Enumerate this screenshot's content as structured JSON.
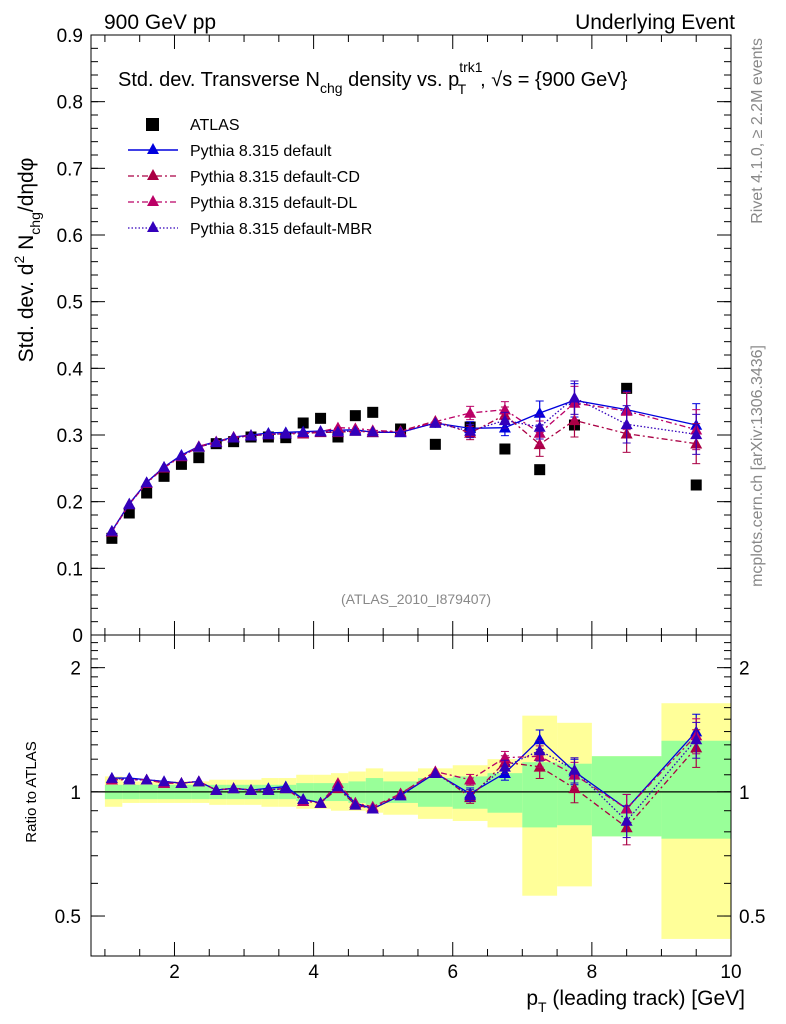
{
  "header": {
    "left": "900 GeV pp",
    "right": "Underlying Event"
  },
  "side_text": {
    "rivet": "Rivet 4.1.0, ≥ 2.2M events",
    "mcplots": "mcplots.cern.ch [arXiv:1306.3436]"
  },
  "analysis_id": "(ATLAS_2010_I879407)",
  "colors": {
    "atlas": "#000000",
    "default": "#0000dd",
    "cd": "#aa0044",
    "dl": "#bb0066",
    "mbr": "#3300bb",
    "band_yellow": "#ffff99",
    "band_green": "#99ff99"
  },
  "chart_data": [
    {
      "type": "scatter",
      "panel": "main",
      "title_parts": {
        "a": "Std. dev. Transverse N",
        "a_sub": "chg",
        "b": " density vs. p",
        "b_sup": "trk1",
        "b_sub": "T",
        "c": ", √s = {900 GeV}"
      },
      "ylabel": "Std. dev. d² N_chg/dηdφ",
      "ylabel_parts": {
        "a": "Std. dev. d",
        "sup": "2",
        "b": " N",
        "sub": "chg",
        "c": "/dηdφ"
      },
      "xlabel": "p_T (leading track) [GeV]",
      "xlabel_parts": {
        "a": "p",
        "sub": "T",
        "b": " (leading track) [GeV]"
      },
      "xlim": [
        0.8,
        10
      ],
      "ylim": [
        0,
        0.9
      ],
      "x_ticks": [
        "2",
        "4",
        "6",
        "8",
        "10"
      ],
      "y_ticks": [
        "0",
        "0.1",
        "0.2",
        "0.3",
        "0.4",
        "0.5",
        "0.6",
        "0.7",
        "0.8",
        "0.9"
      ],
      "x": [
        1.1,
        1.35,
        1.6,
        1.85,
        2.1,
        2.35,
        2.6,
        2.85,
        3.1,
        3.35,
        3.6,
        3.85,
        4.1,
        4.35,
        4.6,
        4.85,
        5.25,
        5.75,
        6.25,
        6.75,
        7.25,
        7.75,
        8.5,
        9.5
      ],
      "series": [
        {
          "name": "ATLAS",
          "key": "atlas",
          "marker": "square",
          "line": "none",
          "values": [
            0.145,
            0.183,
            0.213,
            0.238,
            0.256,
            0.266,
            0.287,
            0.29,
            0.297,
            0.297,
            0.296,
            0.318,
            0.325,
            0.297,
            0.329,
            0.334,
            0.309,
            0.286,
            0.312,
            0.279,
            0.248,
            0.315,
            0.37,
            0.225
          ]
        },
        {
          "name": "Pythia 8.315 default",
          "key": "default",
          "marker": "triangle",
          "line": "solid",
          "values": [
            0.156,
            0.197,
            0.229,
            0.252,
            0.27,
            0.283,
            0.29,
            0.297,
            0.3,
            0.303,
            0.304,
            0.305,
            0.306,
            0.307,
            0.308,
            0.304,
            0.304,
            0.318,
            0.31,
            0.311,
            0.333,
            0.352,
            0.338,
            0.315
          ],
          "errors": [
            0.002,
            0.002,
            0.002,
            0.002,
            0.002,
            0.002,
            0.002,
            0.002,
            0.002,
            0.002,
            0.002,
            0.003,
            0.003,
            0.003,
            0.004,
            0.004,
            0.004,
            0.007,
            0.01,
            0.012,
            0.018,
            0.025,
            0.028,
            0.032
          ]
        },
        {
          "name": "Pythia 8.315 default-CD",
          "key": "cd",
          "marker": "triangle",
          "line": "dashdot",
          "values": [
            0.155,
            0.196,
            0.228,
            0.251,
            0.268,
            0.282,
            0.289,
            0.296,
            0.299,
            0.301,
            0.302,
            0.302,
            0.304,
            0.304,
            0.306,
            0.304,
            0.306,
            0.321,
            0.303,
            0.33,
            0.286,
            0.322,
            0.302,
            0.287
          ],
          "errors": [
            0.002,
            0.002,
            0.002,
            0.002,
            0.002,
            0.002,
            0.002,
            0.002,
            0.002,
            0.002,
            0.002,
            0.003,
            0.003,
            0.003,
            0.004,
            0.004,
            0.004,
            0.007,
            0.01,
            0.012,
            0.018,
            0.025,
            0.028,
            0.03
          ]
        },
        {
          "name": "Pythia 8.315 default-DL",
          "key": "dl",
          "marker": "triangle",
          "line": "dashdot",
          "values": [
            0.155,
            0.196,
            0.228,
            0.251,
            0.268,
            0.283,
            0.29,
            0.297,
            0.299,
            0.301,
            0.302,
            0.303,
            0.305,
            0.311,
            0.31,
            0.307,
            0.305,
            0.32,
            0.333,
            0.338,
            0.303,
            0.348,
            0.336,
            0.308
          ],
          "errors": [
            0.002,
            0.002,
            0.002,
            0.002,
            0.002,
            0.002,
            0.002,
            0.002,
            0.002,
            0.002,
            0.002,
            0.003,
            0.003,
            0.003,
            0.004,
            0.004,
            0.004,
            0.007,
            0.01,
            0.012,
            0.018,
            0.025,
            0.028,
            0.03
          ]
        },
        {
          "name": "Pythia 8.315 default-MBR",
          "key": "mbr",
          "marker": "triangle",
          "line": "dotted",
          "values": [
            0.156,
            0.196,
            0.229,
            0.252,
            0.269,
            0.282,
            0.289,
            0.296,
            0.299,
            0.301,
            0.302,
            0.304,
            0.305,
            0.305,
            0.306,
            0.305,
            0.304,
            0.318,
            0.306,
            0.322,
            0.312,
            0.356,
            0.316,
            0.301
          ],
          "errors": [
            0.002,
            0.002,
            0.002,
            0.002,
            0.002,
            0.002,
            0.002,
            0.002,
            0.002,
            0.002,
            0.002,
            0.003,
            0.003,
            0.003,
            0.004,
            0.004,
            0.004,
            0.007,
            0.01,
            0.012,
            0.018,
            0.025,
            0.028,
            0.03
          ]
        }
      ]
    },
    {
      "type": "line",
      "panel": "ratio",
      "ylabel": "Ratio to ATLAS",
      "ylim": [
        0.4,
        2.4
      ],
      "y_ticks": [
        "0.5",
        "1",
        "2"
      ],
      "reference_line": 1,
      "bin_edges": [
        1.0,
        1.25,
        1.5,
        1.75,
        2.0,
        2.25,
        2.5,
        2.75,
        3.0,
        3.25,
        3.5,
        3.75,
        4.0,
        4.25,
        4.5,
        4.75,
        5.0,
        5.5,
        6.0,
        6.5,
        7.0,
        7.5,
        8.0,
        9.0,
        10.0
      ],
      "band_green": [
        [
          0.96,
          1.04
        ],
        [
          0.96,
          1.04
        ],
        [
          0.96,
          1.04
        ],
        [
          0.96,
          1.04
        ],
        [
          0.96,
          1.04
        ],
        [
          0.96,
          1.04
        ],
        [
          0.96,
          1.04
        ],
        [
          0.96,
          1.04
        ],
        [
          0.96,
          1.04
        ],
        [
          0.96,
          1.04
        ],
        [
          0.96,
          1.04
        ],
        [
          0.95,
          1.05
        ],
        [
          0.95,
          1.05
        ],
        [
          0.95,
          1.05
        ],
        [
          0.94,
          1.06
        ],
        [
          0.93,
          1.08
        ],
        [
          0.94,
          1.06
        ],
        [
          0.92,
          1.08
        ],
        [
          0.91,
          1.09
        ],
        [
          0.89,
          1.11
        ],
        [
          0.82,
          1.18
        ],
        [
          0.83,
          1.17
        ],
        [
          0.78,
          1.22
        ],
        [
          0.77,
          1.33
        ]
      ],
      "band_yellow": [
        [
          0.92,
          1.09
        ],
        [
          0.94,
          1.06
        ],
        [
          0.94,
          1.06
        ],
        [
          0.94,
          1.06
        ],
        [
          0.94,
          1.06
        ],
        [
          0.94,
          1.06
        ],
        [
          0.93,
          1.07
        ],
        [
          0.93,
          1.07
        ],
        [
          0.93,
          1.07
        ],
        [
          0.92,
          1.08
        ],
        [
          0.92,
          1.08
        ],
        [
          0.91,
          1.1
        ],
        [
          0.91,
          1.1
        ],
        [
          0.9,
          1.11
        ],
        [
          0.9,
          1.12
        ],
        [
          0.89,
          1.14
        ],
        [
          0.88,
          1.12
        ],
        [
          0.86,
          1.14
        ],
        [
          0.85,
          1.16
        ],
        [
          0.82,
          1.2
        ],
        [
          0.56,
          1.53
        ],
        [
          0.59,
          1.47
        ],
        [
          0.78,
          1.22
        ],
        [
          0.44,
          1.64
        ]
      ],
      "series": [
        {
          "key": "default",
          "values": [
            1.08,
            1.08,
            1.07,
            1.06,
            1.05,
            1.06,
            1.01,
            1.02,
            1.01,
            1.02,
            1.03,
            0.96,
            0.94,
            1.03,
            0.94,
            0.91,
            0.98,
            1.11,
            0.99,
            1.11,
            1.34,
            1.12,
            0.91,
            1.4
          ]
        },
        {
          "key": "cd",
          "values": [
            1.07,
            1.07,
            1.07,
            1.05,
            1.05,
            1.06,
            1.01,
            1.02,
            1.01,
            1.01,
            1.02,
            0.95,
            0.94,
            1.02,
            0.93,
            0.91,
            0.99,
            1.12,
            0.97,
            1.18,
            1.15,
            1.02,
            0.82,
            1.28
          ]
        },
        {
          "key": "dl",
          "values": [
            1.07,
            1.07,
            1.07,
            1.05,
            1.05,
            1.06,
            1.01,
            1.02,
            1.01,
            1.01,
            1.02,
            0.95,
            0.94,
            1.05,
            0.94,
            0.92,
            0.99,
            1.12,
            1.07,
            1.21,
            1.22,
            1.1,
            0.91,
            1.37
          ]
        },
        {
          "key": "mbr",
          "values": [
            1.08,
            1.07,
            1.07,
            1.06,
            1.05,
            1.06,
            1.01,
            1.02,
            1.01,
            1.01,
            1.02,
            0.96,
            0.94,
            1.03,
            0.93,
            0.91,
            0.98,
            1.11,
            0.98,
            1.15,
            1.26,
            1.13,
            0.85,
            1.34
          ]
        }
      ]
    }
  ]
}
